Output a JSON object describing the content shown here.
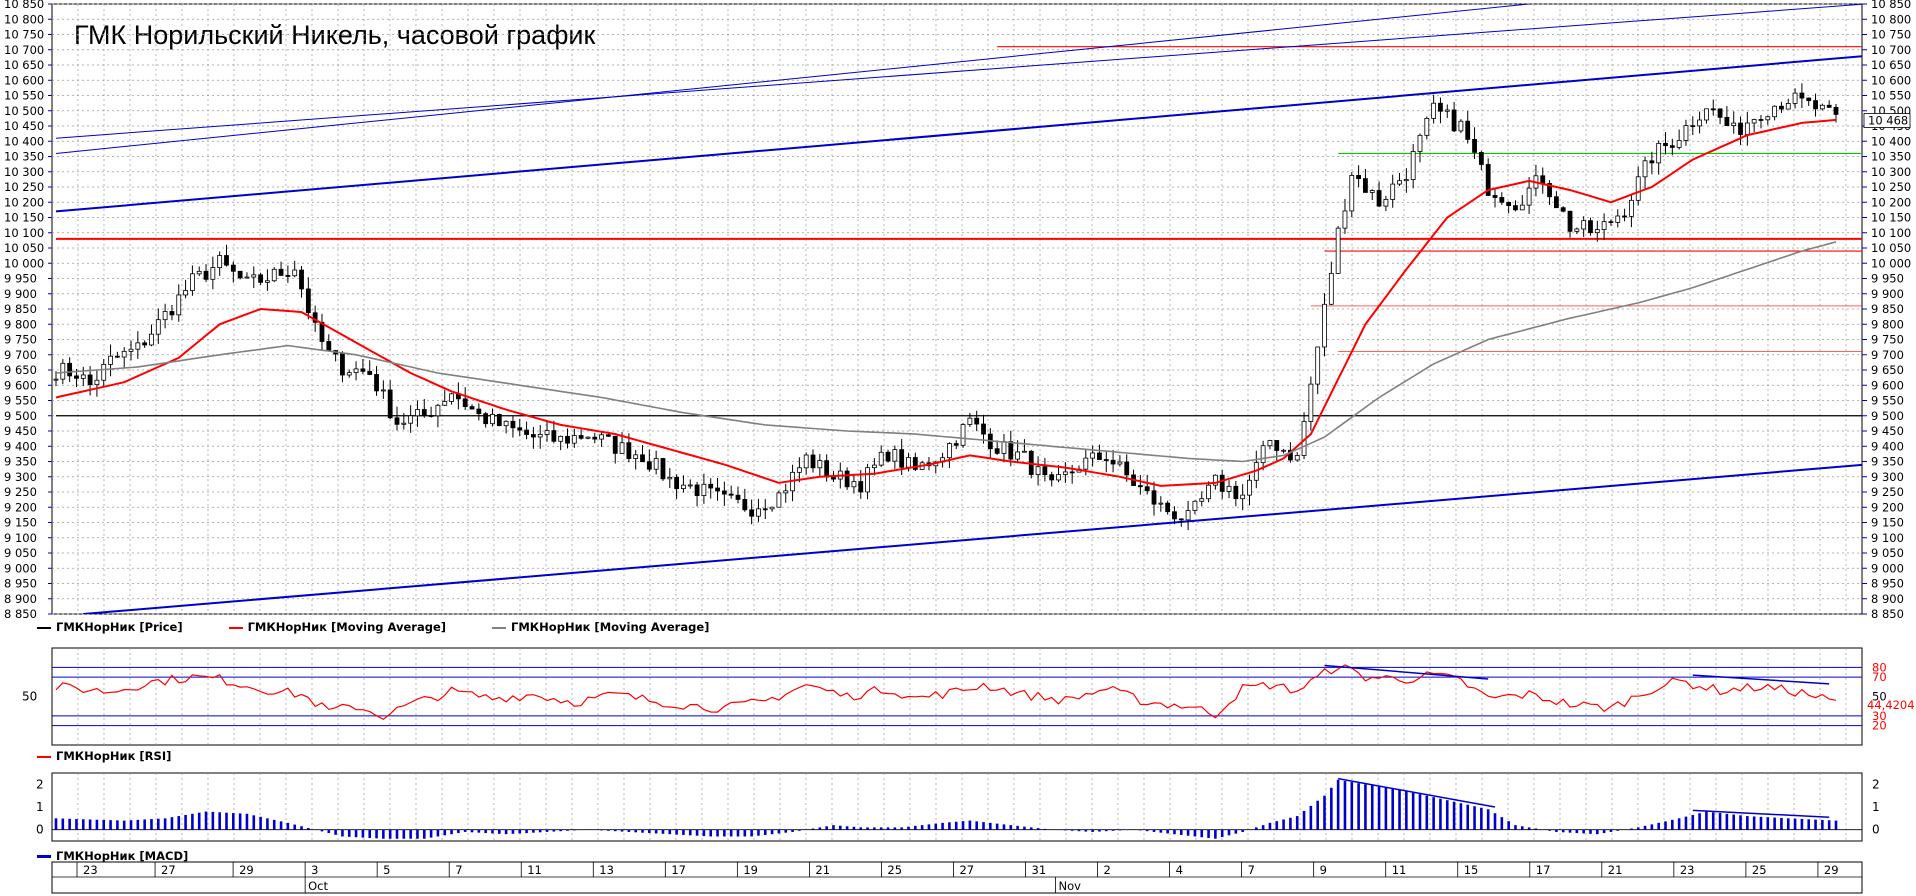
{
  "chart_data": [
    {
      "type": "candlestick",
      "title": "ГМК Норильский Никель, часовой график",
      "ylim": [
        8850,
        10850
      ],
      "y_ticks": [
        "8 850",
        "8 900",
        "8 950",
        "9 000",
        "9 050",
        "9 100",
        "9 150",
        "9 200",
        "9 250",
        "9 300",
        "9 350",
        "9 400",
        "9 450",
        "9 500",
        "9 550",
        "9 600",
        "9 650",
        "9 700",
        "9 750",
        "9 800",
        "9 850",
        "9 900",
        "9 950",
        "10 000",
        "10 050",
        "10 100",
        "10 150",
        "10 200",
        "10 250",
        "10 300",
        "10 350",
        "10 400",
        "10 450",
        "10 500",
        "10 550",
        "10 600",
        "10 650",
        "10 700",
        "10 750",
        "10 800",
        "10 850"
      ],
      "last_price_label": "10 468",
      "price_path_keypoints": [
        [
          0,
          9650
        ],
        [
          3,
          9640
        ],
        [
          5,
          9600
        ],
        [
          8,
          9680
        ],
        [
          12,
          9720
        ],
        [
          16,
          9830
        ],
        [
          20,
          9940
        ],
        [
          24,
          10000
        ],
        [
          28,
          9930
        ],
        [
          32,
          9960
        ],
        [
          35,
          9990
        ],
        [
          38,
          9780
        ],
        [
          40,
          9700
        ],
        [
          42,
          9660
        ],
        [
          46,
          9640
        ],
        [
          50,
          9480
        ],
        [
          54,
          9500
        ],
        [
          58,
          9580
        ],
        [
          62,
          9500
        ],
        [
          66,
          9460
        ],
        [
          70,
          9430
        ],
        [
          74,
          9420
        ],
        [
          78,
          9440
        ],
        [
          82,
          9400
        ],
        [
          86,
          9370
        ],
        [
          90,
          9290
        ],
        [
          94,
          9260
        ],
        [
          98,
          9220
        ],
        [
          102,
          9200
        ],
        [
          106,
          9240
        ],
        [
          110,
          9360
        ],
        [
          114,
          9300
        ],
        [
          118,
          9280
        ],
        [
          122,
          9380
        ],
        [
          126,
          9320
        ],
        [
          130,
          9380
        ],
        [
          134,
          9480
        ],
        [
          138,
          9400
        ],
        [
          142,
          9360
        ],
        [
          146,
          9260
        ],
        [
          150,
          9340
        ],
        [
          154,
          9370
        ],
        [
          158,
          9280
        ],
        [
          162,
          9200
        ],
        [
          166,
          9160
        ],
        [
          170,
          9280
        ],
        [
          174,
          9240
        ],
        [
          178,
          9420
        ],
        [
          182,
          9360
        ],
        [
          184,
          9600
        ],
        [
          186,
          9850
        ],
        [
          188,
          10100
        ],
        [
          190,
          10300
        ],
        [
          194,
          10200
        ],
        [
          198,
          10300
        ],
        [
          202,
          10500
        ],
        [
          206,
          10450
        ],
        [
          210,
          10250
        ],
        [
          214,
          10200
        ],
        [
          218,
          10280
        ],
        [
          222,
          10120
        ],
        [
          226,
          10100
        ],
        [
          230,
          10180
        ],
        [
          234,
          10350
        ],
        [
          238,
          10420
        ],
        [
          242,
          10520
        ],
        [
          246,
          10430
        ],
        [
          250,
          10500
        ],
        [
          254,
          10540
        ],
        [
          258,
          10510
        ],
        [
          261,
          10470
        ]
      ],
      "series": [
        {
          "name": "ГМКНорНик [Price]",
          "color": "#000000"
        },
        {
          "name": "ГМКНорНик [Moving Average]",
          "color": "#ff0000",
          "points": [
            [
              0,
              9560
            ],
            [
              10,
              9610
            ],
            [
              18,
              9690
            ],
            [
              24,
              9800
            ],
            [
              30,
              9850
            ],
            [
              36,
              9840
            ],
            [
              44,
              9740
            ],
            [
              52,
              9640
            ],
            [
              58,
              9580
            ],
            [
              66,
              9520
            ],
            [
              74,
              9470
            ],
            [
              82,
              9440
            ],
            [
              90,
              9390
            ],
            [
              98,
              9340
            ],
            [
              106,
              9280
            ],
            [
              112,
              9300
            ],
            [
              120,
              9310
            ],
            [
              128,
              9340
            ],
            [
              134,
              9370
            ],
            [
              140,
              9350
            ],
            [
              148,
              9330
            ],
            [
              156,
              9300
            ],
            [
              162,
              9270
            ],
            [
              170,
              9280
            ],
            [
              176,
              9320
            ],
            [
              180,
              9360
            ],
            [
              184,
              9440
            ],
            [
              188,
              9620
            ],
            [
              192,
              9800
            ],
            [
              198,
              9980
            ],
            [
              204,
              10150
            ],
            [
              210,
              10240
            ],
            [
              216,
              10270
            ],
            [
              222,
              10240
            ],
            [
              228,
              10200
            ],
            [
              234,
              10250
            ],
            [
              240,
              10340
            ],
            [
              248,
              10420
            ],
            [
              256,
              10460
            ],
            [
              261,
              10470
            ]
          ]
        },
        {
          "name": "ГМКНорНик [Moving Average]",
          "color": "#808080",
          "points": [
            [
              0,
              9640
            ],
            [
              12,
              9660
            ],
            [
              24,
              9700
            ],
            [
              34,
              9730
            ],
            [
              44,
              9700
            ],
            [
              56,
              9640
            ],
            [
              68,
              9600
            ],
            [
              80,
              9560
            ],
            [
              92,
              9510
            ],
            [
              104,
              9470
            ],
            [
              116,
              9450
            ],
            [
              126,
              9440
            ],
            [
              136,
              9420
            ],
            [
              146,
              9400
            ],
            [
              156,
              9380
            ],
            [
              166,
              9360
            ],
            [
              174,
              9350
            ],
            [
              180,
              9370
            ],
            [
              186,
              9430
            ],
            [
              194,
              9560
            ],
            [
              202,
              9670
            ],
            [
              210,
              9750
            ],
            [
              222,
              9820
            ],
            [
              232,
              9870
            ],
            [
              240,
              9920
            ],
            [
              248,
              9980
            ],
            [
              256,
              10040
            ],
            [
              261,
              10070
            ]
          ]
        }
      ],
      "trend_lines": [
        {
          "color": "#0000cc",
          "width": 2,
          "from": [
            0,
            10170
          ],
          "to": [
            261,
            10680
          ]
        },
        {
          "color": "#0000cc",
          "width": 2,
          "from": [
            4,
            8850
          ],
          "to": [
            261,
            9340
          ]
        },
        {
          "color": "#0000cc",
          "width": 1,
          "from": [
            0,
            10360
          ],
          "to": [
            216,
            10850
          ]
        },
        {
          "color": "#0000cc",
          "width": 1,
          "from": [
            0,
            10410
          ],
          "to": [
            261,
            10850
          ]
        }
      ],
      "h_levels": [
        {
          "value": 10710,
          "from": 138,
          "color": "#ff0000"
        },
        {
          "value": 10360,
          "from": 188,
          "color": "#00cc00"
        },
        {
          "value": 10080,
          "from": 0,
          "color": "#ff0000",
          "width": 2
        },
        {
          "value": 10040,
          "from": 186,
          "color": "#ff0000"
        },
        {
          "value": 9860,
          "from": 184,
          "color": "#ff0000",
          "width": 0.7
        },
        {
          "value": 9710,
          "from": 188,
          "color": "#ff0000",
          "width": 0.7
        },
        {
          "value": 9500,
          "from": 0,
          "color": "#000000"
        }
      ]
    },
    {
      "type": "line",
      "ylim": [
        0,
        100
      ],
      "y_ticks_left": [
        "50"
      ],
      "y_ticks_right": [
        "80",
        "70",
        "50",
        "30",
        "20"
      ],
      "levels": [
        80,
        70,
        30,
        20
      ],
      "current_label": "44,4204",
      "series": [
        {
          "name": "ГМКНорНик [RSI]",
          "color": "#ff0000"
        }
      ],
      "keypoints": [
        [
          0,
          60
        ],
        [
          8,
          55
        ],
        [
          14,
          65
        ],
        [
          20,
          70
        ],
        [
          24,
          68
        ],
        [
          30,
          58
        ],
        [
          36,
          52
        ],
        [
          40,
          35
        ],
        [
          44,
          40
        ],
        [
          48,
          30
        ],
        [
          52,
          42
        ],
        [
          58,
          55
        ],
        [
          64,
          48
        ],
        [
          70,
          52
        ],
        [
          76,
          44
        ],
        [
          82,
          52
        ],
        [
          88,
          45
        ],
        [
          94,
          40
        ],
        [
          98,
          38
        ],
        [
          104,
          45
        ],
        [
          110,
          62
        ],
        [
          116,
          50
        ],
        [
          122,
          58
        ],
        [
          126,
          48
        ],
        [
          132,
          55
        ],
        [
          136,
          62
        ],
        [
          142,
          52
        ],
        [
          148,
          46
        ],
        [
          154,
          58
        ],
        [
          160,
          44
        ],
        [
          166,
          40
        ],
        [
          170,
          32
        ],
        [
          174,
          58
        ],
        [
          178,
          62
        ],
        [
          182,
          56
        ],
        [
          186,
          74
        ],
        [
          188,
          82
        ],
        [
          192,
          70
        ],
        [
          198,
          68
        ],
        [
          202,
          72
        ],
        [
          206,
          66
        ],
        [
          210,
          48
        ],
        [
          216,
          52
        ],
        [
          222,
          42
        ],
        [
          228,
          38
        ],
        [
          234,
          58
        ],
        [
          238,
          66
        ],
        [
          244,
          56
        ],
        [
          250,
          60
        ],
        [
          256,
          54
        ],
        [
          261,
          44
        ]
      ],
      "divergence_lines": [
        [
          186,
          82,
          210,
          68
        ],
        [
          240,
          72,
          260,
          63
        ]
      ]
    },
    {
      "type": "bar",
      "ylim": [
        -0.5,
        2.5
      ],
      "y_ticks": [
        "2",
        "1",
        "0"
      ],
      "series": [
        {
          "name": "ГМКНорНик [MACD]",
          "color": "#0000cc"
        }
      ],
      "keypoints": [
        [
          0,
          0.5
        ],
        [
          10,
          0.4
        ],
        [
          16,
          0.5
        ],
        [
          22,
          0.8
        ],
        [
          28,
          0.7
        ],
        [
          34,
          0.3
        ],
        [
          38,
          0.0
        ],
        [
          42,
          -0.3
        ],
        [
          48,
          -0.4
        ],
        [
          54,
          -0.4
        ],
        [
          60,
          -0.1
        ],
        [
          66,
          -0.2
        ],
        [
          72,
          -0.1
        ],
        [
          78,
          0.0
        ],
        [
          84,
          -0.1
        ],
        [
          90,
          -0.2
        ],
        [
          96,
          -0.3
        ],
        [
          102,
          -0.3
        ],
        [
          108,
          -0.1
        ],
        [
          114,
          0.2
        ],
        [
          118,
          0.1
        ],
        [
          124,
          0.1
        ],
        [
          130,
          0.3
        ],
        [
          134,
          0.4
        ],
        [
          140,
          0.2
        ],
        [
          146,
          0.0
        ],
        [
          152,
          -0.1
        ],
        [
          158,
          0.0
        ],
        [
          164,
          -0.2
        ],
        [
          170,
          -0.4
        ],
        [
          174,
          -0.1
        ],
        [
          178,
          0.3
        ],
        [
          182,
          0.6
        ],
        [
          186,
          1.5
        ],
        [
          188,
          2.2
        ],
        [
          192,
          2.0
        ],
        [
          198,
          1.7
        ],
        [
          204,
          1.3
        ],
        [
          210,
          0.9
        ],
        [
          214,
          0.2
        ],
        [
          220,
          -0.1
        ],
        [
          226,
          -0.2
        ],
        [
          232,
          0.1
        ],
        [
          238,
          0.5
        ],
        [
          242,
          0.8
        ],
        [
          248,
          0.6
        ],
        [
          254,
          0.5
        ],
        [
          261,
          0.4
        ]
      ],
      "divergence_lines": [
        [
          188,
          2.25,
          211,
          1.0
        ],
        [
          240,
          0.85,
          260,
          0.55
        ]
      ]
    }
  ],
  "x_axis": {
    "days": [
      "23",
      "27",
      "29",
      "3",
      "5",
      "7",
      "11",
      "13",
      "17",
      "19",
      "21",
      "25",
      "27",
      "31",
      "2",
      "4",
      "7",
      "9",
      "11",
      "15",
      "17",
      "21",
      "23",
      "25",
      "29"
    ],
    "day_positions": [
      2,
      15,
      28,
      40,
      52,
      64,
      76,
      88,
      100,
      112,
      124,
      136,
      148,
      160,
      172,
      184,
      196,
      208,
      220,
      232,
      244,
      256,
      268,
      280,
      292
    ],
    "months": [
      "Oct",
      "Nov"
    ],
    "month_positions": [
      40,
      165
    ]
  },
  "legend_labels": {
    "price": "ГМКНорНик [Price]",
    "ma_red": "ГМКНорНик [Moving Average]",
    "ma_gray": "ГМКНорНик [Moving Average]",
    "rsi": "ГМКНорНик [RSI]",
    "macd": "ГМКНорНик [MACD]"
  }
}
